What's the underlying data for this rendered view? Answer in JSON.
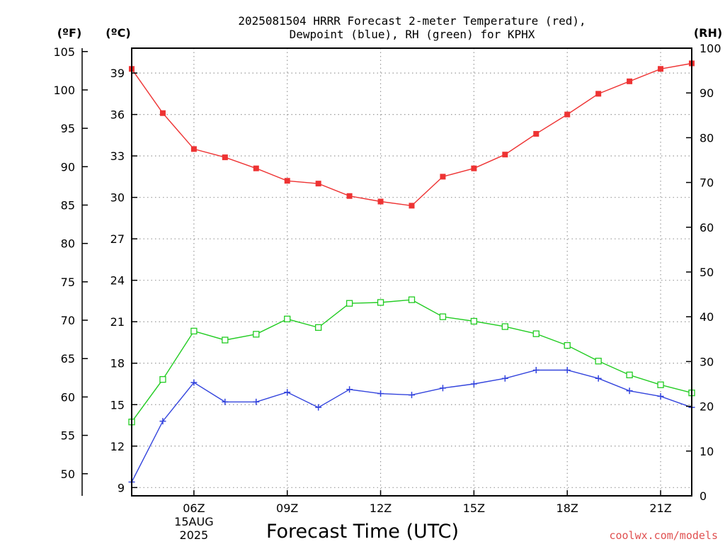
{
  "chart_data": {
    "type": "line",
    "title": "2025081504 HRRR Forecast 2-meter Temperature (red),",
    "subtitle": "Dewpoint (blue), RH (green) for KPHX",
    "xlabel": "Forecast Time (UTC)",
    "unit_labels": {
      "fahrenheit": "(ºF)",
      "celsius": "(ºC)",
      "rh": "(RH)"
    },
    "credit": "coolwx.com/models",
    "x_hours": [
      4,
      5,
      6,
      7,
      8,
      9,
      10,
      11,
      12,
      13,
      14,
      15,
      16,
      17,
      18,
      19,
      20,
      21,
      22
    ],
    "xlim": [
      4,
      22
    ],
    "x_ticks": [
      {
        "hour": 6,
        "label": "06Z",
        "sub1": "15AUG",
        "sub2": "2025"
      },
      {
        "hour": 9,
        "label": "09Z",
        "sub1": "",
        "sub2": ""
      },
      {
        "hour": 12,
        "label": "12Z",
        "sub1": "",
        "sub2": ""
      },
      {
        "hour": 15,
        "label": "15Z",
        "sub1": "",
        "sub2": ""
      },
      {
        "hour": 18,
        "label": "18Z",
        "sub1": "",
        "sub2": ""
      },
      {
        "hour": 21,
        "label": "21Z",
        "sub1": "",
        "sub2": ""
      }
    ],
    "celsius_axis": {
      "ylim": [
        8.4,
        40.8
      ],
      "ticks": [
        "9",
        "12",
        "15",
        "18",
        "21",
        "24",
        "27",
        "30",
        "33",
        "36",
        "39"
      ]
    },
    "fahrenheit_axis": {
      "ticks": [
        "50",
        "55",
        "60",
        "65",
        "70",
        "75",
        "80",
        "85",
        "90",
        "95",
        "100",
        "105"
      ]
    },
    "rh_axis": {
      "ylim": [
        0,
        100
      ],
      "ticks": [
        "0",
        "10",
        "20",
        "30",
        "40",
        "50",
        "60",
        "70",
        "80",
        "90",
        "100"
      ]
    },
    "grid": true,
    "series": [
      {
        "key": "temperature",
        "color": "#ee3333",
        "marker": "filled-square",
        "axis": "celsius",
        "values": [
          39.3,
          36.1,
          33.5,
          32.9,
          32.1,
          31.2,
          31.0,
          30.1,
          29.7,
          29.4,
          31.5,
          32.1,
          33.1,
          34.6,
          36.0,
          37.5,
          38.4,
          39.3,
          39.7
        ]
      },
      {
        "key": "dewpoint",
        "color": "#3344dd",
        "marker": "plus",
        "axis": "celsius",
        "values": [
          9.4,
          13.8,
          16.6,
          15.2,
          15.2,
          15.9,
          14.8,
          16.1,
          15.8,
          15.7,
          16.2,
          16.5,
          16.9,
          17.5,
          17.5,
          16.9,
          16.0,
          15.6,
          14.8
        ]
      },
      {
        "key": "rh",
        "color": "#22cc22",
        "marker": "open-square",
        "axis": "rh",
        "values": [
          16.5,
          26.0,
          36.8,
          34.8,
          36.1,
          39.5,
          37.6,
          43.0,
          43.2,
          43.8,
          40.0,
          39.0,
          37.8,
          36.2,
          33.6,
          30.1,
          27.0,
          24.8,
          23.0
        ]
      }
    ]
  }
}
